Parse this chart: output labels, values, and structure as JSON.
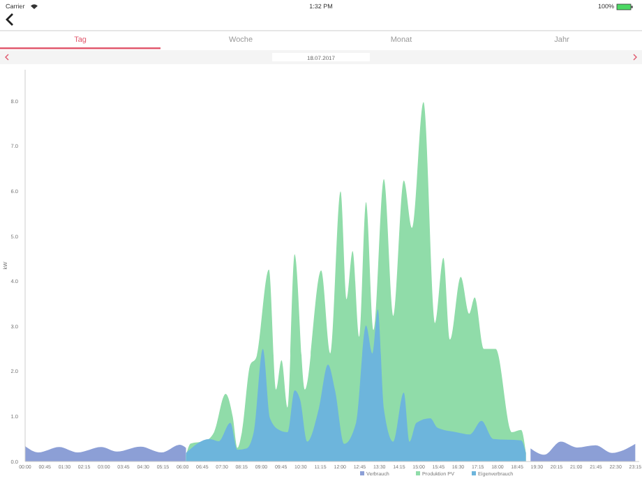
{
  "chart_data": {
    "type": "area",
    "ylabel": "kW",
    "annotations": [
      "Carrier",
      "1:32 PM",
      "100%",
      "Tag",
      "Woche",
      "Monat",
      "Jahr",
      "18.07.2017"
    ],
    "xlim": [
      0,
      23.4
    ],
    "ylim": [
      0,
      8.7
    ],
    "xticks": [
      {
        "value": 0,
        "label": "00:00"
      },
      {
        "value": 0.75,
        "label": "00:45"
      },
      {
        "value": 1.5,
        "label": "01:30"
      },
      {
        "value": 2.25,
        "label": "02:15"
      },
      {
        "value": 3,
        "label": "03:00"
      },
      {
        "value": 3.75,
        "label": "03:45"
      },
      {
        "value": 4.5,
        "label": "04:30"
      },
      {
        "value": 5.25,
        "label": "05:15"
      },
      {
        "value": 6,
        "label": "06:00"
      },
      {
        "value": 6.75,
        "label": "06:45"
      },
      {
        "value": 7.5,
        "label": "07:30"
      },
      {
        "value": 8.25,
        "label": "08:15"
      },
      {
        "value": 9,
        "label": "09:00"
      },
      {
        "value": 9.75,
        "label": "09:45"
      },
      {
        "value": 10.5,
        "label": "10:30"
      },
      {
        "value": 11.25,
        "label": "11:15"
      },
      {
        "value": 12,
        "label": "12:00"
      },
      {
        "value": 12.75,
        "label": "12:45"
      },
      {
        "value": 13.5,
        "label": "13:30"
      },
      {
        "value": 14.25,
        "label": "14:15"
      },
      {
        "value": 15,
        "label": "15:00"
      },
      {
        "value": 15.75,
        "label": "15:45"
      },
      {
        "value": 16.5,
        "label": "16:30"
      },
      {
        "value": 17.25,
        "label": "17:15"
      },
      {
        "value": 18,
        "label": "18:00"
      },
      {
        "value": 18.75,
        "label": "18:45"
      },
      {
        "value": 19.5,
        "label": "19:30"
      },
      {
        "value": 20.25,
        "label": "20:15"
      },
      {
        "value": 21,
        "label": "21:00"
      },
      {
        "value": 21.75,
        "label": "21:45"
      },
      {
        "value": 22.5,
        "label": "22:30"
      },
      {
        "value": 23.25,
        "label": "23:15"
      }
    ],
    "yticks": [
      {
        "value": 0,
        "label": "0.0"
      },
      {
        "value": 1,
        "label": "1.0"
      },
      {
        "value": 2,
        "label": "2.0"
      },
      {
        "value": 3,
        "label": "3.0"
      },
      {
        "value": 4,
        "label": "4.0"
      },
      {
        "value": 5,
        "label": "5.0"
      },
      {
        "value": 6,
        "label": "6.0"
      },
      {
        "value": 7,
        "label": "7.0"
      },
      {
        "value": 8,
        "label": "8.0"
      }
    ],
    "grid": false,
    "legend": "bottom right",
    "series": [
      {
        "name": "Verbrauch",
        "color": "#8c9fd6",
        "x": [
          0,
          0.5,
          1.3,
          2.0,
          2.9,
          3.5,
          4.4,
          5.2,
          5.9,
          6.13,
          6.3,
          19.08,
          19.26,
          19.79,
          20.41,
          21.03,
          21.74,
          22.36,
          23.25
        ],
        "values": [
          0.34,
          0.2,
          0.32,
          0.2,
          0.32,
          0.22,
          0.33,
          0.2,
          0.37,
          0.3,
          null,
          null,
          0.29,
          0.15,
          0.44,
          0.31,
          0.36,
          0.19,
          0.39
        ]
      },
      {
        "name": "Produktion PV",
        "color": "#90dca9",
        "x": [
          6.13,
          6.31,
          6.84,
          7.2,
          7.64,
          7.91,
          8.09,
          8.26,
          8.58,
          8.8,
          9.29,
          9.56,
          9.77,
          10.0,
          10.27,
          10.66,
          11.28,
          11.63,
          12.02,
          12.25,
          12.48,
          12.73,
          12.99,
          13.28,
          13.67,
          14.03,
          14.43,
          14.74,
          15.18,
          15.62,
          15.94,
          16.19,
          16.6,
          16.92,
          17.13,
          17.48,
          17.93,
          18.55,
          18.9,
          19.08
        ],
        "values": [
          0.13,
          0.4,
          0.45,
          0.65,
          1.5,
          1.0,
          0.3,
          0.65,
          2.15,
          2.3,
          4.26,
          1.6,
          2.25,
          1.2,
          4.6,
          1.6,
          4.24,
          2.4,
          6.0,
          3.6,
          4.67,
          2.77,
          5.76,
          2.92,
          6.27,
          3.23,
          6.24,
          5.19,
          7.98,
          3.07,
          4.52,
          2.71,
          4.1,
          3.28,
          3.64,
          2.5,
          2.5,
          0.65,
          0.7,
          0.19
        ]
      },
      {
        "name": "Eigenverbrauch",
        "color": "#6db5dc",
        "x": [
          6.13,
          7.02,
          7.38,
          7.82,
          8.09,
          8.44,
          8.71,
          9.06,
          9.33,
          9.68,
          10.0,
          10.27,
          10.48,
          10.75,
          11.19,
          11.54,
          11.81,
          12.16,
          12.61,
          12.99,
          13.23,
          13.44,
          13.67,
          14.03,
          14.43,
          14.65,
          14.91,
          15.44,
          15.71,
          16.42,
          16.95,
          17.39,
          17.84,
          18.9,
          19.08
        ],
        "values": [
          0.19,
          0.5,
          0.45,
          0.86,
          0.26,
          0.29,
          0.65,
          2.5,
          0.96,
          0.7,
          0.65,
          1.58,
          1.37,
          0.44,
          1.17,
          2.15,
          1.58,
          0.39,
          0.86,
          3.02,
          2.4,
          3.38,
          1.17,
          0.44,
          1.53,
          0.44,
          0.86,
          0.96,
          0.75,
          0.65,
          0.6,
          0.9,
          0.5,
          0.47,
          0.19
        ]
      }
    ]
  }
}
